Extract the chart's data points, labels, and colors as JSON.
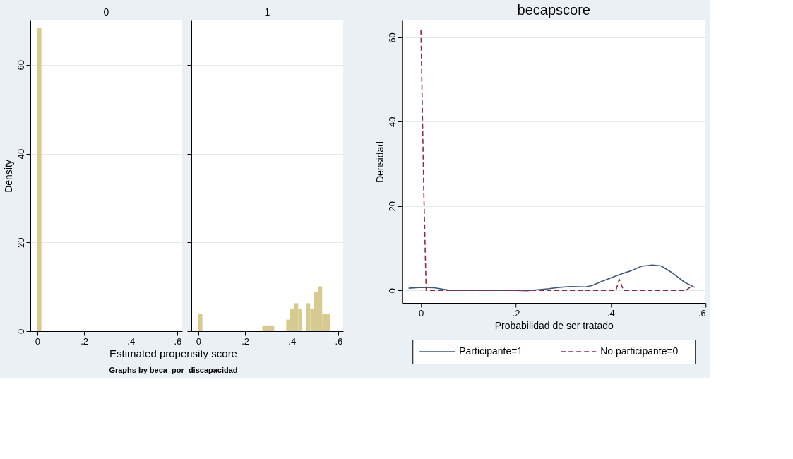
{
  "chart_data": [
    {
      "type": "histogram",
      "title": "0",
      "ylabel": "Density",
      "color": "#d6ca8e",
      "bins": [
        0,
        0.0171
      ],
      "values": [
        68.3
      ],
      "xlim": [
        -0.03,
        0.62
      ],
      "xticks": [
        {
          "value": 0,
          "label": "0"
        },
        {
          "value": 0.2,
          "label": ".2"
        },
        {
          "value": 0.4,
          "label": ".4"
        },
        {
          "value": 0.6,
          "label": ".6"
        }
      ],
      "ylim": [
        0,
        70
      ],
      "yticks": [
        0,
        20,
        40,
        60
      ],
      "grid": "y",
      "legend": false
    },
    {
      "type": "histogram",
      "title": "1",
      "xlabel": "Estimated propensity score",
      "annotations": [
        "Graphs by beca_por_discapacidad"
      ],
      "color": "#d6ca8e",
      "bins": [
        0,
        0.0171,
        0.0342,
        0.0513,
        0.0684,
        0.0855,
        0.1026,
        0.1197,
        0.1368,
        0.1539,
        0.171,
        0.1881,
        0.2052,
        0.2223,
        0.2394,
        0.2565,
        0.2736,
        0.2907,
        0.3078,
        0.3249,
        0.342,
        0.3591,
        0.3762,
        0.3933,
        0.4104,
        0.4275,
        0.4446,
        0.4617,
        0.4788,
        0.4959,
        0.513,
        0.5301,
        0.5472,
        0.5643
      ],
      "values": [
        3.9,
        0,
        0,
        0,
        0,
        0,
        0,
        0,
        0,
        0,
        0,
        0,
        0,
        0,
        0,
        0,
        1.3,
        1.3,
        1.3,
        0,
        0,
        0,
        2.6,
        5.1,
        6.3,
        5.1,
        0,
        6.3,
        5.1,
        8.9,
        10.1,
        3.9,
        3.9
      ],
      "xlim": [
        -0.03,
        0.62
      ],
      "xticks": [
        {
          "value": 0,
          "label": "0"
        },
        {
          "value": 0.2,
          "label": ".2"
        },
        {
          "value": 0.4,
          "label": ".4"
        },
        {
          "value": 0.6,
          "label": ".6"
        }
      ],
      "ylim": [
        0,
        70
      ],
      "yticks": [
        0,
        20,
        40,
        60
      ],
      "tick_labels": "x",
      "grid": "y",
      "legend": false
    },
    {
      "type": "line",
      "title": "becapscore",
      "xlabel": "Probabilidad de ser tratado",
      "ylabel": "Densidad",
      "series": [
        {
          "name": "Participante=1",
          "color": "#3d5a7e",
          "line_style": "solid",
          "x": [
            -0.026,
            0,
            0.028,
            0.06,
            0.11,
            0.2,
            0.224,
            0.27,
            0.292,
            0.315,
            0.347,
            0.36,
            0.383,
            0.42,
            0.442,
            0.465,
            0.488,
            0.506,
            0.529,
            0.556,
            0.577
          ],
          "values": [
            0.5,
            0.7,
            0.6,
            0,
            0,
            0,
            -0.1,
            0.4,
            0.7,
            0.9,
            0.8,
            1.1,
            2.2,
            3.8,
            4.6,
            5.7,
            6.0,
            5.8,
            4.2,
            1.9,
            0.7
          ]
        },
        {
          "name": "No participante=0",
          "color": "#8e2c3c",
          "line_style": "dashed",
          "x": [
            0,
            0.006,
            0.011,
            0.2,
            0.411,
            0.418,
            0.427,
            0.559,
            0.57
          ],
          "values": [
            61.7,
            23.5,
            0,
            0,
            0,
            2.6,
            0,
            0,
            1.0
          ]
        }
      ],
      "xlim": [
        -0.04,
        0.6
      ],
      "xticks": [
        {
          "value": 0,
          "label": "0"
        },
        {
          "value": 0.2,
          "label": ".2"
        },
        {
          "value": 0.4,
          "label": ".4"
        },
        {
          "value": 0.6,
          "label": ".6"
        }
      ],
      "ylim": [
        -3,
        64
      ],
      "yticks": [
        0,
        20,
        40,
        60
      ],
      "grid": "y",
      "legend": "bottom"
    }
  ]
}
